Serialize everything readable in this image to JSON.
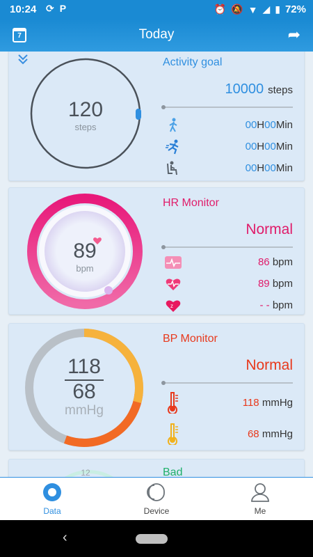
{
  "status_bar": {
    "time": "10:24",
    "battery": "72%"
  },
  "header": {
    "title": "Today",
    "calendar_day": "7"
  },
  "activity": {
    "steps": "120",
    "steps_unit": "steps",
    "title": "Activity goal",
    "goal": "10000",
    "goal_unit": "steps",
    "rows": [
      {
        "h": "00",
        "h_label": "H",
        "m": "00",
        "m_label": "Min"
      },
      {
        "h": "00",
        "h_label": "H",
        "m": "00",
        "m_label": "Min"
      },
      {
        "h": "00",
        "h_label": "H",
        "m": "00",
        "m_label": "Min"
      }
    ]
  },
  "hr": {
    "value": "89",
    "unit": "bpm",
    "title": "HR Monitor",
    "status": "Normal",
    "rows": [
      {
        "value": "86",
        "unit": "bpm"
      },
      {
        "value": "89",
        "unit": "bpm"
      },
      {
        "value": "- -",
        "unit": "bpm"
      }
    ]
  },
  "bp": {
    "systolic": "118",
    "diastolic": "68",
    "unit": "mmHg",
    "title": "BP Monitor",
    "status": "Normal",
    "rows": [
      {
        "value": "118",
        "unit": "mmHg"
      },
      {
        "value": "68",
        "unit": "mmHg"
      }
    ]
  },
  "next_card": {
    "title": "Bad",
    "value": "12"
  },
  "nav": {
    "data": "Data",
    "device": "Device",
    "me": "Me"
  },
  "colors": {
    "primary": "#1a8ad3",
    "hr_pink": "#e01c6a",
    "bp_red": "#e8391c",
    "bp_orange": "#f6b23c"
  }
}
